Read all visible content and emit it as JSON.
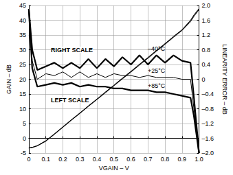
{
  "chart_data": {
    "type": "line",
    "x_label": "VGAIN – V",
    "y_label": "GAIN – dB",
    "y2_label": "LINEARITY ERROR – dB",
    "xlim": [
      0,
      1
    ],
    "xticks": [
      0,
      0.1,
      0.2,
      0.3,
      0.4,
      0.5,
      0.6,
      0.7,
      0.8,
      0.9,
      {
        "value": 1,
        "label": "1.0"
      }
    ],
    "ylim": [
      -5,
      45
    ],
    "yticks": [
      -5,
      0,
      5,
      10,
      15,
      20,
      25,
      30,
      35,
      40,
      45
    ],
    "y2lim": [
      -2,
      2
    ],
    "y2ticks": [
      {
        "value": -2,
        "label": "–2.0"
      },
      {
        "value": -1.6,
        "label": "–1.6"
      },
      {
        "value": -1.2,
        "label": "–1.2"
      },
      {
        "value": -0.8,
        "label": "–0.8"
      },
      {
        "value": -0.4,
        "label": "–0.4"
      },
      0,
      0.4,
      0.8,
      1.2,
      1.6,
      {
        "value": 2,
        "label": "2.0"
      }
    ],
    "grid": true,
    "x": [
      0,
      0.02,
      0.05,
      0.1,
      0.15,
      0.2,
      0.25,
      0.3,
      0.35,
      0.4,
      0.45,
      0.5,
      0.55,
      0.6,
      0.65,
      0.7,
      0.75,
      0.8,
      0.85,
      0.9,
      0.95,
      0.97,
      1.0
    ],
    "series": [
      {
        "color": "#000000",
        "values": [
          -3.3,
          -3.1,
          -2.5,
          -0.8,
          1.5,
          3.9,
          6.3,
          8.6,
          11.0,
          13.3,
          15.7,
          18.0,
          20.4,
          22.7,
          25.1,
          27.4,
          29.8,
          32.1,
          34.5,
          36.8,
          40.0,
          41.8,
          44.0
        ]
      },
      {
        "color": "#000000",
        "values": [
          -3.3,
          -3.1,
          -2.5,
          -0.9,
          1.4,
          3.8,
          6.2,
          8.5,
          10.9,
          13.2,
          15.6,
          17.9,
          20.3,
          22.6,
          25.0,
          27.3,
          29.7,
          32.0,
          34.4,
          36.7,
          39.8,
          41.6,
          43.8
        ]
      },
      {
        "color": "#000000",
        "values": [
          -3.3,
          -3.1,
          -2.6,
          -1.0,
          1.3,
          3.7,
          6.1,
          8.4,
          10.8,
          13.1,
          15.4,
          17.8,
          20.1,
          22.4,
          24.8,
          27.1,
          29.5,
          31.8,
          34.2,
          36.5,
          39.5,
          41.3,
          43.6
        ]
      },
      {
        "name": "–40°C",
        "axis": "y2",
        "color": "#000000",
        "values": [
          1.9,
          0.8,
          0.25,
          0.35,
          0.45,
          0.3,
          0.45,
          0.3,
          0.55,
          0.3,
          0.55,
          0.35,
          0.6,
          0.4,
          0.65,
          0.4,
          0.65,
          0.45,
          0.65,
          0.5,
          0.45,
          -0.5,
          -2.0
        ]
      },
      {
        "name": "+25°C",
        "axis": "y2",
        "color": "#000000",
        "values": [
          1.9,
          0.5,
          0.0,
          0.15,
          0.1,
          0.2,
          0.05,
          0.2,
          0.05,
          0.15,
          0.05,
          0.15,
          0.1,
          0.1,
          0.05,
          0.1,
          0.05,
          0.05,
          0.05,
          0.0,
          0.0,
          -0.8,
          -2.0
        ]
      },
      {
        "name": "+85°C",
        "axis": "y2",
        "color": "#000000",
        "values": [
          1.9,
          0.3,
          -0.2,
          -0.15,
          -0.1,
          -0.15,
          -0.1,
          -0.2,
          -0.15,
          -0.2,
          -0.2,
          -0.25,
          -0.25,
          -0.3,
          -0.3,
          -0.3,
          -0.35,
          -0.35,
          -0.4,
          -0.45,
          -0.5,
          -1.0,
          -2.0
        ]
      }
    ],
    "annotations": [
      {
        "text": "RIGHT SCALE",
        "x": 0.13,
        "y": 30
      },
      {
        "text": "LEFT SCALE",
        "x": 0.13,
        "y": 13
      }
    ]
  }
}
